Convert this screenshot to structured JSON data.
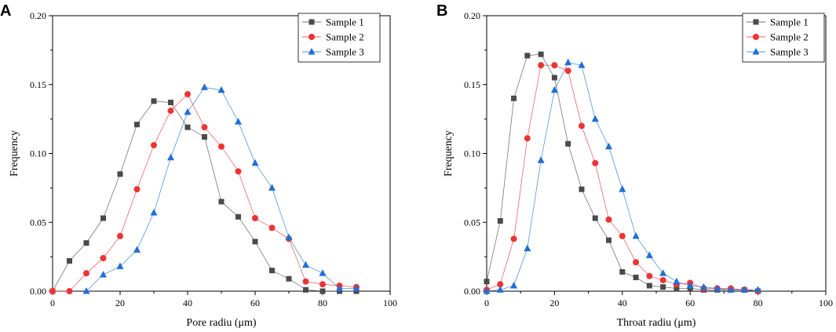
{
  "figure": {
    "background": "#ffffff"
  },
  "chart_data": [
    {
      "panel_label": "A",
      "type": "line",
      "title": "",
      "xlabel": "Pore radiu (μm)",
      "ylabel": "Frequency",
      "xlim": [
        0,
        100
      ],
      "ylim": [
        0,
        0.2
      ],
      "xticks": [
        0,
        20,
        40,
        60,
        80,
        100
      ],
      "xtick_labels": [
        "0",
        "20",
        "40",
        "60",
        "80",
        "100"
      ],
      "yticks": [
        0,
        0.05,
        0.1,
        0.15,
        0.2
      ],
      "ytick_labels": [
        "0.00",
        "0.05",
        "0.10",
        "0.15",
        "0.20"
      ],
      "grid": false,
      "legend_position": "top-right",
      "series": [
        {
          "name": "Sample 1",
          "color": "#4a4a4a",
          "marker": "square",
          "x": [
            0,
            5,
            10,
            15,
            20,
            25,
            30,
            35,
            40,
            45,
            50,
            55,
            60,
            65,
            70,
            75,
            80,
            85,
            90
          ],
          "y": [
            0,
            0.022,
            0.035,
            0.053,
            0.085,
            0.121,
            0.138,
            0.137,
            0.119,
            0.112,
            0.065,
            0.054,
            0.036,
            0.015,
            0.009,
            0.001,
            0,
            0,
            0
          ]
        },
        {
          "name": "Sample 2",
          "color": "#ee3333",
          "marker": "circle",
          "x": [
            0,
            5,
            10,
            15,
            20,
            25,
            30,
            35,
            40,
            45,
            50,
            55,
            60,
            65,
            70,
            75,
            80,
            85,
            90
          ],
          "y": [
            0,
            0,
            0.013,
            0.024,
            0.04,
            0.074,
            0.106,
            0.131,
            0.143,
            0.119,
            0.105,
            0.087,
            0.053,
            0.046,
            0.038,
            0.007,
            0.005,
            0.004,
            0.003
          ]
        },
        {
          "name": "Sample 3",
          "color": "#1f6fd6",
          "marker": "triangle",
          "x": [
            10,
            15,
            20,
            25,
            30,
            35,
            40,
            45,
            50,
            55,
            60,
            65,
            70,
            75,
            80,
            85,
            90
          ],
          "y": [
            0,
            0.012,
            0.018,
            0.03,
            0.057,
            0.097,
            0.13,
            0.148,
            0.146,
            0.123,
            0.093,
            0.075,
            0.039,
            0.019,
            0.013,
            0.002,
            0.002
          ]
        }
      ]
    },
    {
      "panel_label": "B",
      "type": "line",
      "title": "",
      "xlabel": "Throat radiu (μm)",
      "ylabel": "Frequency",
      "xlim": [
        0,
        100
      ],
      "ylim": [
        0,
        0.2
      ],
      "xticks": [
        0,
        20,
        40,
        60,
        80,
        100
      ],
      "xtick_labels": [
        "0",
        "20",
        "40",
        "60",
        "80",
        "100"
      ],
      "yticks": [
        0,
        0.05,
        0.1,
        0.15,
        0.2
      ],
      "ytick_labels": [
        "0.00",
        "0.05",
        "0.10",
        "0.15",
        "0.20"
      ],
      "grid": false,
      "legend_position": "top-right",
      "series": [
        {
          "name": "Sample 1",
          "color": "#4a4a4a",
          "marker": "square",
          "x": [
            0,
            4,
            8,
            12,
            16,
            20,
            24,
            28,
            32,
            36,
            40,
            44,
            48,
            52,
            56,
            60,
            64,
            68,
            72,
            76,
            80
          ],
          "y": [
            0.007,
            0.051,
            0.14,
            0.171,
            0.172,
            0.155,
            0.107,
            0.074,
            0.053,
            0.037,
            0.014,
            0.01,
            0.004,
            0.003,
            0.002,
            0.002,
            0.001,
            0.001,
            0.001,
            0.001,
            0
          ]
        },
        {
          "name": "Sample 2",
          "color": "#ee3333",
          "marker": "circle",
          "x": [
            0,
            4,
            8,
            12,
            16,
            20,
            24,
            28,
            32,
            36,
            40,
            44,
            48,
            52,
            56,
            60,
            64,
            68,
            72,
            76,
            80
          ],
          "y": [
            0.001,
            0.005,
            0.038,
            0.111,
            0.164,
            0.164,
            0.16,
            0.12,
            0.093,
            0.052,
            0.04,
            0.021,
            0.011,
            0.008,
            0.005,
            0.006,
            0.002,
            0.002,
            0.002,
            0.001,
            0
          ]
        },
        {
          "name": "Sample 3",
          "color": "#1f6fd6",
          "marker": "triangle",
          "x": [
            0,
            4,
            8,
            12,
            16,
            20,
            24,
            28,
            32,
            36,
            40,
            44,
            48,
            52,
            56,
            60,
            64,
            68,
            72,
            76,
            80
          ],
          "y": [
            0,
            0.001,
            0.004,
            0.031,
            0.095,
            0.146,
            0.166,
            0.164,
            0.125,
            0.105,
            0.074,
            0.04,
            0.026,
            0.013,
            0.007,
            0.004,
            0.003,
            0.002,
            0.001,
            0.001,
            0.001
          ]
        }
      ]
    }
  ]
}
